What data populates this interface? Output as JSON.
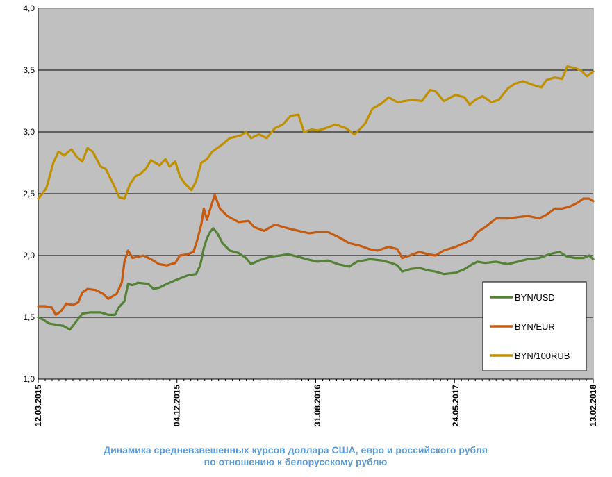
{
  "caption": {
    "line1": "Динамика  средневзвешенных курсов доллара США, евро и российского рубля",
    "line2": "по отношению к белорусскому рублю"
  },
  "colors": {
    "plot_background": "#c0c0c0",
    "gridline": "#000000",
    "usd": "#538135",
    "eur": "#c55a11",
    "rub": "#bf9000",
    "caption": "#5b9bd5"
  },
  "chart_data": {
    "type": "line",
    "title": "Динамика  средневзвешенных курсов доллара США, евро и российского рубля по отношению к белорусскому рублю",
    "xlabel": "",
    "ylabel": "",
    "ylim": [
      1.0,
      4.0
    ],
    "yticks": [
      "1,0",
      "1,5",
      "2,0",
      "2,5",
      "3,0",
      "3,5",
      "4,0"
    ],
    "xticks": [
      "12.03.2015",
      "04.12.2015",
      "31.08.2016",
      "24.05.2017",
      "13.02.2018"
    ],
    "grid": "horizontal",
    "legend_position": "bottom-right",
    "series": [
      {
        "name": "BYN/USD",
        "color": "#538135",
        "points": [
          [
            "12.03.2015",
            1.5
          ],
          [
            "22.03.2015",
            1.48
          ],
          [
            "02.04.2015",
            1.45
          ],
          [
            "16.04.2015",
            1.44
          ],
          [
            "30.04.2015",
            1.43
          ],
          [
            "12.05.2015",
            1.4
          ],
          [
            "25.05.2015",
            1.47
          ],
          [
            "05.06.2015",
            1.53
          ],
          [
            "20.06.2015",
            1.54
          ],
          [
            "10.07.2015",
            1.54
          ],
          [
            "25.07.2015",
            1.52
          ],
          [
            "07.08.2015",
            1.52
          ],
          [
            "14.08.2015",
            1.58
          ],
          [
            "25.08.2015",
            1.63
          ],
          [
            "01.09.2015",
            1.77
          ],
          [
            "10.09.2015",
            1.76
          ],
          [
            "20.09.2015",
            1.78
          ],
          [
            "10.10.2015",
            1.77
          ],
          [
            "20.10.2015",
            1.73
          ],
          [
            "31.10.2015",
            1.74
          ],
          [
            "10.11.2015",
            1.76
          ],
          [
            "01.12.2015",
            1.8
          ],
          [
            "25.12.2015",
            1.84
          ],
          [
            "10.01.2016",
            1.85
          ],
          [
            "18.01.2016",
            1.92
          ],
          [
            "25.01.2016",
            2.06
          ],
          [
            "31.01.2016",
            2.14
          ],
          [
            "06.02.2016",
            2.19
          ],
          [
            "12.02.2016",
            2.22
          ],
          [
            "20.02.2016",
            2.18
          ],
          [
            "01.03.2016",
            2.1
          ],
          [
            "15.03.2016",
            2.04
          ],
          [
            "01.04.2016",
            2.02
          ],
          [
            "15.04.2016",
            1.98
          ],
          [
            "25.04.2016",
            1.93
          ],
          [
            "10.05.2016",
            1.96
          ],
          [
            "01.06.2016",
            1.99
          ],
          [
            "20.06.2016",
            2.0
          ],
          [
            "05.07.2016",
            2.01
          ],
          [
            "25.07.2016",
            1.99
          ],
          [
            "10.08.2016",
            1.97
          ],
          [
            "31.08.2016",
            1.95
          ],
          [
            "20.09.2016",
            1.96
          ],
          [
            "10.10.2016",
            1.93
          ],
          [
            "31.10.2016",
            1.91
          ],
          [
            "15.11.2016",
            1.95
          ],
          [
            "10.12.2016",
            1.97
          ],
          [
            "01.01.2017",
            1.96
          ],
          [
            "20.01.2017",
            1.94
          ],
          [
            "01.02.2017",
            1.92
          ],
          [
            "10.02.2017",
            1.87
          ],
          [
            "25.02.2017",
            1.89
          ],
          [
            "15.03.2017",
            1.9
          ],
          [
            "01.04.2017",
            1.88
          ],
          [
            "15.04.2017",
            1.87
          ],
          [
            "01.05.2017",
            1.85
          ],
          [
            "24.05.2017",
            1.86
          ],
          [
            "10.06.2017",
            1.89
          ],
          [
            "25.06.2017",
            1.93
          ],
          [
            "05.07.2017",
            1.95
          ],
          [
            "20.07.2017",
            1.94
          ],
          [
            "10.08.2017",
            1.95
          ],
          [
            "01.09.2017",
            1.93
          ],
          [
            "20.09.2017",
            1.95
          ],
          [
            "10.10.2017",
            1.97
          ],
          [
            "01.11.2017",
            1.98
          ],
          [
            "20.11.2017",
            2.01
          ],
          [
            "10.12.2017",
            2.03
          ],
          [
            "25.12.2017",
            1.99
          ],
          [
            "10.01.2018",
            1.98
          ],
          [
            "25.01.2018",
            1.98
          ],
          [
            "05.02.2018",
            2.0
          ],
          [
            "13.02.2018",
            1.97
          ]
        ]
      },
      {
        "name": "BYN/EUR",
        "color": "#c55a11",
        "points": [
          [
            "12.03.2015",
            1.59
          ],
          [
            "25.03.2015",
            1.59
          ],
          [
            "07.04.2015",
            1.58
          ],
          [
            "15.04.2015",
            1.52
          ],
          [
            "25.04.2015",
            1.55
          ],
          [
            "05.05.2015",
            1.61
          ],
          [
            "18.05.2015",
            1.6
          ],
          [
            "28.05.2015",
            1.62
          ],
          [
            "05.06.2015",
            1.7
          ],
          [
            "15.06.2015",
            1.73
          ],
          [
            "01.07.2015",
            1.72
          ],
          [
            "15.07.2015",
            1.69
          ],
          [
            "25.07.2015",
            1.65
          ],
          [
            "10.08.2015",
            1.69
          ],
          [
            "20.08.2015",
            1.78
          ],
          [
            "25.08.2015",
            1.95
          ],
          [
            "01.09.2015",
            2.04
          ],
          [
            "10.09.2015",
            1.98
          ],
          [
            "01.10.2015",
            2.0
          ],
          [
            "15.10.2015",
            1.97
          ],
          [
            "31.10.2015",
            1.93
          ],
          [
            "15.11.2015",
            1.92
          ],
          [
            "01.12.2015",
            1.94
          ],
          [
            "10.12.2015",
            2.0
          ],
          [
            "25.12.2015",
            2.01
          ],
          [
            "05.01.2016",
            2.03
          ],
          [
            "12.01.2016",
            2.12
          ],
          [
            "20.01.2016",
            2.25
          ],
          [
            "25.01.2016",
            2.38
          ],
          [
            "31.01.2016",
            2.29
          ],
          [
            "08.02.2016",
            2.4
          ],
          [
            "15.02.2016",
            2.49
          ],
          [
            "25.02.2016",
            2.38
          ],
          [
            "10.03.2016",
            2.32
          ],
          [
            "01.04.2016",
            2.27
          ],
          [
            "20.04.2016",
            2.28
          ],
          [
            "01.05.2016",
            2.23
          ],
          [
            "20.05.2016",
            2.2
          ],
          [
            "10.06.2016",
            2.25
          ],
          [
            "05.07.2016",
            2.22
          ],
          [
            "25.07.2016",
            2.2
          ],
          [
            "15.08.2016",
            2.18
          ],
          [
            "31.08.2016",
            2.19
          ],
          [
            "20.09.2016",
            2.19
          ],
          [
            "10.10.2016",
            2.15
          ],
          [
            "31.10.2016",
            2.1
          ],
          [
            "20.11.2016",
            2.08
          ],
          [
            "10.12.2016",
            2.05
          ],
          [
            "25.12.2016",
            2.04
          ],
          [
            "15.01.2017",
            2.07
          ],
          [
            "01.02.2017",
            2.05
          ],
          [
            "10.02.2017",
            1.98
          ],
          [
            "25.02.2017",
            2.0
          ],
          [
            "15.03.2017",
            2.03
          ],
          [
            "01.04.2017",
            2.01
          ],
          [
            "15.04.2017",
            2.0
          ],
          [
            "01.05.2017",
            2.04
          ],
          [
            "24.05.2017",
            2.07
          ],
          [
            "10.06.2017",
            2.1
          ],
          [
            "25.06.2017",
            2.13
          ],
          [
            "05.07.2017",
            2.19
          ],
          [
            "20.07.2017",
            2.23
          ],
          [
            "10.08.2017",
            2.3
          ],
          [
            "01.09.2017",
            2.3
          ],
          [
            "20.09.2017",
            2.31
          ],
          [
            "10.10.2017",
            2.32
          ],
          [
            "01.11.2017",
            2.3
          ],
          [
            "15.11.2017",
            2.33
          ],
          [
            "01.12.2017",
            2.38
          ],
          [
            "15.12.2017",
            2.38
          ],
          [
            "01.01.2018",
            2.4
          ],
          [
            "15.01.2018",
            2.43
          ],
          [
            "25.01.2018",
            2.46
          ],
          [
            "05.02.2018",
            2.46
          ],
          [
            "13.02.2018",
            2.44
          ]
        ]
      },
      {
        "name": "BYN/100RUB",
        "color": "#bf9000",
        "points": [
          [
            "12.03.2015",
            2.46
          ],
          [
            "20.03.2015",
            2.5
          ],
          [
            "28.03.2015",
            2.55
          ],
          [
            "10.04.2015",
            2.75
          ],
          [
            "20.04.2015",
            2.84
          ],
          [
            "01.05.2015",
            2.81
          ],
          [
            "15.05.2015",
            2.86
          ],
          [
            "25.05.2015",
            2.8
          ],
          [
            "05.06.2015",
            2.76
          ],
          [
            "15.06.2015",
            2.87
          ],
          [
            "25.06.2015",
            2.84
          ],
          [
            "10.07.2015",
            2.72
          ],
          [
            "20.07.2015",
            2.7
          ],
          [
            "01.08.2015",
            2.6
          ],
          [
            "10.08.2015",
            2.52
          ],
          [
            "15.08.2015",
            2.47
          ],
          [
            "25.08.2015",
            2.46
          ],
          [
            "05.09.2015",
            2.58
          ],
          [
            "15.09.2015",
            2.64
          ],
          [
            "25.09.2015",
            2.66
          ],
          [
            "05.10.2015",
            2.7
          ],
          [
            "15.10.2015",
            2.77
          ],
          [
            "01.11.2015",
            2.73
          ],
          [
            "12.11.2015",
            2.78
          ],
          [
            "20.11.2015",
            2.72
          ],
          [
            "01.12.2015",
            2.76
          ],
          [
            "10.12.2015",
            2.64
          ],
          [
            "20.12.2015",
            2.58
          ],
          [
            "01.01.2016",
            2.53
          ],
          [
            "10.01.2016",
            2.6
          ],
          [
            "20.01.2016",
            2.75
          ],
          [
            "31.01.2016",
            2.78
          ],
          [
            "10.02.2016",
            2.84
          ],
          [
            "01.03.2016",
            2.9
          ],
          [
            "15.03.2016",
            2.95
          ],
          [
            "05.04.2016",
            2.97
          ],
          [
            "15.04.2016",
            3.0
          ],
          [
            "25.04.2016",
            2.95
          ],
          [
            "10.05.2016",
            2.98
          ],
          [
            "25.05.2016",
            2.95
          ],
          [
            "10.06.2016",
            3.03
          ],
          [
            "25.06.2016",
            3.06
          ],
          [
            "10.07.2016",
            3.13
          ],
          [
            "25.07.2016",
            3.14
          ],
          [
            "05.08.2016",
            3.0
          ],
          [
            "20.08.2016",
            3.02
          ],
          [
            "31.08.2016",
            3.01
          ],
          [
            "15.09.2016",
            3.03
          ],
          [
            "05.10.2016",
            3.06
          ],
          [
            "25.10.2016",
            3.03
          ],
          [
            "10.11.2016",
            2.98
          ],
          [
            "20.11.2016",
            3.02
          ],
          [
            "01.12.2016",
            3.07
          ],
          [
            "15.12.2016",
            3.19
          ],
          [
            "01.01.2017",
            3.23
          ],
          [
            "15.01.2017",
            3.28
          ],
          [
            "01.02.2017",
            3.24
          ],
          [
            "01.03.2017",
            3.26
          ],
          [
            "20.03.2017",
            3.25
          ],
          [
            "05.04.2017",
            3.34
          ],
          [
            "15.04.2017",
            3.33
          ],
          [
            "01.05.2017",
            3.25
          ],
          [
            "24.05.2017",
            3.3
          ],
          [
            "10.06.2017",
            3.28
          ],
          [
            "20.06.2017",
            3.22
          ],
          [
            "01.07.2017",
            3.26
          ],
          [
            "15.07.2017",
            3.29
          ],
          [
            "01.08.2017",
            3.24
          ],
          [
            "15.08.2017",
            3.26
          ],
          [
            "01.09.2017",
            3.35
          ],
          [
            "15.09.2017",
            3.39
          ],
          [
            "01.10.2017",
            3.41
          ],
          [
            "20.10.2017",
            3.38
          ],
          [
            "05.11.2017",
            3.36
          ],
          [
            "15.11.2017",
            3.42
          ],
          [
            "01.12.2017",
            3.44
          ],
          [
            "15.12.2017",
            3.43
          ],
          [
            "25.12.2017",
            3.53
          ],
          [
            "05.01.2018",
            3.52
          ],
          [
            "20.01.2018",
            3.5
          ],
          [
            "01.02.2018",
            3.45
          ],
          [
            "13.02.2018",
            3.49
          ]
        ]
      }
    ]
  }
}
